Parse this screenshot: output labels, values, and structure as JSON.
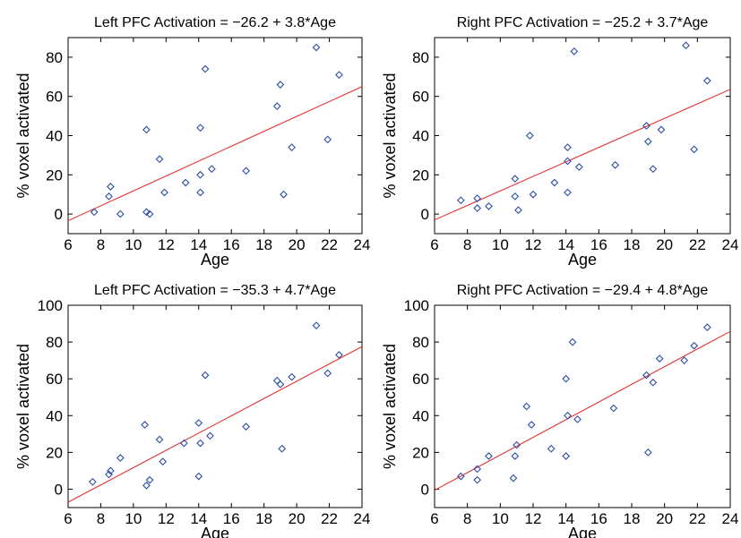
{
  "chart_data": [
    {
      "type": "scatter",
      "title": "Left PFC Activation = −26.2 + 3.8*Age",
      "xlabel": "Age",
      "ylabel": "% voxel activated",
      "xlim": [
        6,
        24
      ],
      "ylim": [
        -10,
        90
      ],
      "xticks": [
        6,
        8,
        10,
        12,
        14,
        16,
        18,
        20,
        22,
        24
      ],
      "yticks": [
        0,
        20,
        40,
        60,
        80
      ],
      "grid": false,
      "points": [
        [
          7.6,
          1
        ],
        [
          8.5,
          9
        ],
        [
          8.6,
          14
        ],
        [
          9.2,
          0
        ],
        [
          10.8,
          43
        ],
        [
          10.8,
          1
        ],
        [
          11.0,
          0
        ],
        [
          11.6,
          28
        ],
        [
          11.9,
          11
        ],
        [
          13.2,
          16
        ],
        [
          14.1,
          11
        ],
        [
          14.1,
          20
        ],
        [
          14.1,
          44
        ],
        [
          14.4,
          74
        ],
        [
          14.8,
          23
        ],
        [
          16.9,
          22
        ],
        [
          18.8,
          55
        ],
        [
          19.0,
          66
        ],
        [
          19.2,
          10
        ],
        [
          19.7,
          34
        ],
        [
          21.2,
          85
        ],
        [
          21.9,
          38
        ],
        [
          22.6,
          71
        ]
      ],
      "fit": {
        "intercept": -26.2,
        "slope": 3.8,
        "color": "#e53030"
      },
      "marker_color": "#2b4ea8"
    },
    {
      "type": "scatter",
      "title": "Right PFC Activation = −25.2 + 3.7*Age",
      "xlabel": "Age",
      "ylabel": "% voxel activated",
      "xlim": [
        6,
        24
      ],
      "ylim": [
        -10,
        90
      ],
      "xticks": [
        6,
        8,
        10,
        12,
        14,
        16,
        18,
        20,
        22,
        24
      ],
      "yticks": [
        0,
        20,
        40,
        60,
        80
      ],
      "grid": false,
      "points": [
        [
          7.6,
          7
        ],
        [
          8.6,
          3
        ],
        [
          8.6,
          8
        ],
        [
          9.3,
          4
        ],
        [
          10.9,
          9
        ],
        [
          10.9,
          18
        ],
        [
          11.1,
          2
        ],
        [
          11.8,
          40
        ],
        [
          12.0,
          10
        ],
        [
          13.3,
          16
        ],
        [
          14.1,
          34
        ],
        [
          14.1,
          27
        ],
        [
          14.1,
          11
        ],
        [
          14.5,
          83
        ],
        [
          14.8,
          24
        ],
        [
          17.0,
          25
        ],
        [
          18.9,
          45
        ],
        [
          19.0,
          37
        ],
        [
          19.3,
          23
        ],
        [
          19.8,
          43
        ],
        [
          21.3,
          86
        ],
        [
          21.8,
          33
        ],
        [
          22.6,
          68
        ]
      ],
      "fit": {
        "intercept": -25.2,
        "slope": 3.7,
        "color": "#e53030"
      },
      "marker_color": "#2b4ea8"
    },
    {
      "type": "scatter",
      "title": "Left PFC Activation = −35.3 + 4.7*Age",
      "xlabel": "Age",
      "ylabel": "% voxel activated",
      "xlim": [
        6,
        24
      ],
      "ylim": [
        -10,
        100
      ],
      "xticks": [
        6,
        8,
        10,
        12,
        14,
        16,
        18,
        20,
        22,
        24
      ],
      "yticks": [
        0,
        20,
        40,
        60,
        80,
        100
      ],
      "grid": false,
      "points": [
        [
          7.5,
          4
        ],
        [
          8.5,
          8
        ],
        [
          8.6,
          10
        ],
        [
          9.2,
          17
        ],
        [
          10.7,
          35
        ],
        [
          10.8,
          2
        ],
        [
          11.0,
          5
        ],
        [
          11.6,
          27
        ],
        [
          11.8,
          15
        ],
        [
          13.1,
          25
        ],
        [
          14.0,
          7
        ],
        [
          14.0,
          36
        ],
        [
          14.1,
          25
        ],
        [
          14.4,
          62
        ],
        [
          14.7,
          29
        ],
        [
          16.9,
          34
        ],
        [
          18.8,
          59
        ],
        [
          19.0,
          57
        ],
        [
          19.1,
          22
        ],
        [
          19.7,
          61
        ],
        [
          21.2,
          89
        ],
        [
          21.9,
          63
        ],
        [
          22.6,
          73
        ]
      ],
      "fit": {
        "intercept": -35.3,
        "slope": 4.7,
        "color": "#e53030"
      },
      "marker_color": "#2b4ea8"
    },
    {
      "type": "scatter",
      "title": "Right PFC Activation = −29.4 + 4.8*Age",
      "xlabel": "Age",
      "ylabel": "% voxel activated",
      "xlim": [
        6,
        24
      ],
      "ylim": [
        -10,
        100
      ],
      "xticks": [
        6,
        8,
        10,
        12,
        14,
        16,
        18,
        20,
        22,
        24
      ],
      "yticks": [
        0,
        20,
        40,
        60,
        80,
        100
      ],
      "grid": false,
      "points": [
        [
          7.6,
          7
        ],
        [
          8.6,
          11
        ],
        [
          8.6,
          5
        ],
        [
          9.3,
          18
        ],
        [
          10.8,
          6
        ],
        [
          10.9,
          18
        ],
        [
          11.0,
          24
        ],
        [
          11.6,
          45
        ],
        [
          11.9,
          35
        ],
        [
          13.1,
          22
        ],
        [
          14.0,
          18
        ],
        [
          14.0,
          60
        ],
        [
          14.1,
          40
        ],
        [
          14.4,
          80
        ],
        [
          14.7,
          38
        ],
        [
          16.9,
          44
        ],
        [
          18.9,
          62
        ],
        [
          19.0,
          20
        ],
        [
          19.3,
          58
        ],
        [
          19.7,
          71
        ],
        [
          21.2,
          70
        ],
        [
          21.8,
          78
        ],
        [
          22.6,
          88
        ]
      ],
      "fit": {
        "intercept": -29.4,
        "slope": 4.8,
        "color": "#e53030"
      },
      "marker_color": "#2b4ea8"
    }
  ]
}
